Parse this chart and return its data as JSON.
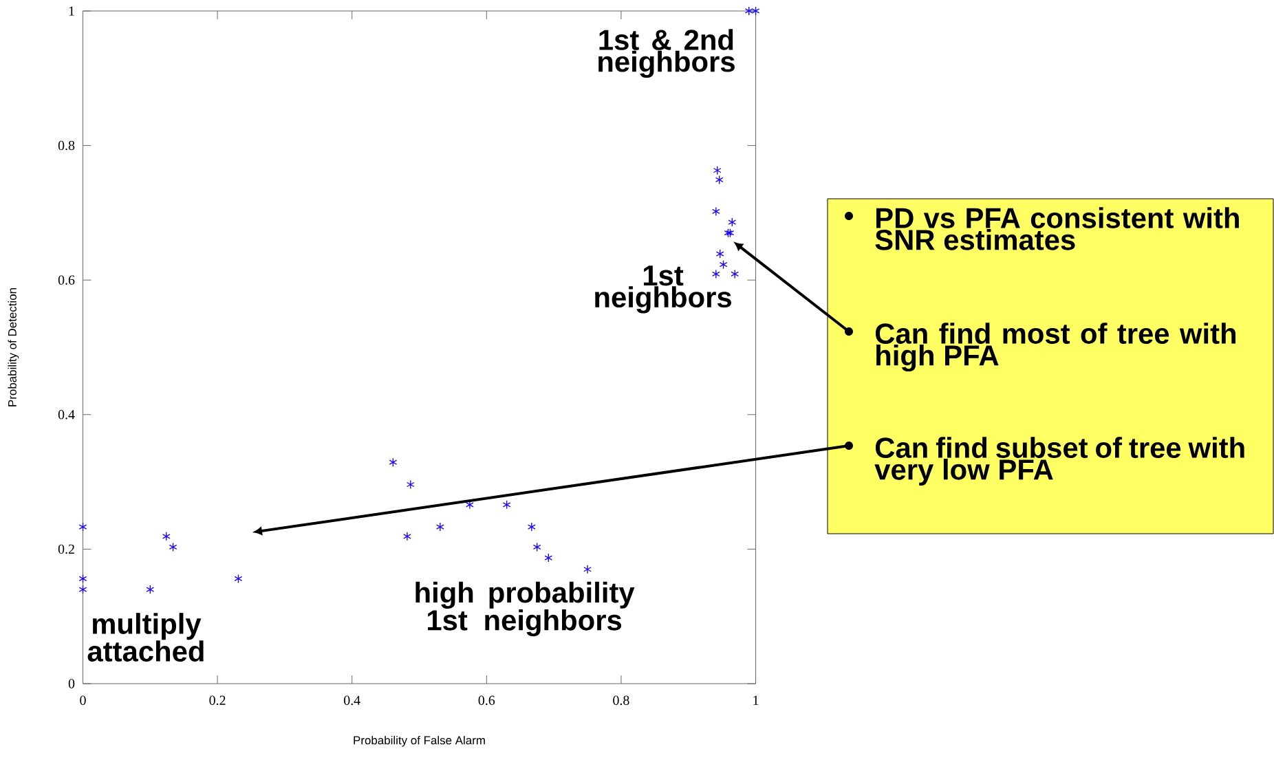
{
  "chart_data": {
    "type": "scatter",
    "xlabel": "Probability of False Alarm",
    "ylabel": "Probability of Detection",
    "xlim": [
      0,
      1
    ],
    "ylim": [
      0,
      1
    ],
    "xticks": [
      0,
      0.2,
      0.4,
      0.6,
      0.8,
      1
    ],
    "yticks": [
      0,
      0.2,
      0.4,
      0.6,
      0.8,
      1
    ],
    "grid": false,
    "marker": "cross",
    "series": [
      {
        "color": "#1a0aff",
        "x": [
          0.943,
          0.946,
          0.941,
          0.965,
          0.959,
          0.962,
          0.947,
          0.952,
          0.941,
          0.969,
          0.99,
          1.0,
          0,
          0,
          0,
          0.124,
          0.134,
          0.1,
          0.231,
          0.461,
          0.487,
          0.482,
          0.531,
          0.575,
          0.63,
          0.667,
          0.675,
          0.692,
          0.75
        ],
        "values": [
          0.763,
          0.749,
          0.702,
          0.686,
          0.67,
          0.67,
          0.639,
          0.623,
          0.609,
          0.609,
          1.0,
          1.0,
          0.233,
          0.156,
          0.14,
          0.219,
          0.203,
          0.14,
          0.156,
          0.329,
          0.296,
          0.219,
          0.233,
          0.266,
          0.266,
          0.233,
          0.203,
          0.187,
          0.17
        ]
      }
    ],
    "annotations": [
      "1st & 2nd neighbors",
      "1st neighbors",
      "high probability 1st neighbors",
      "multiply attached",
      "PD vs PFA consistent with SNR estimates",
      "Can find most of tree with high PFA",
      "Can find subset of tree with very low PFA"
    ]
  }
}
